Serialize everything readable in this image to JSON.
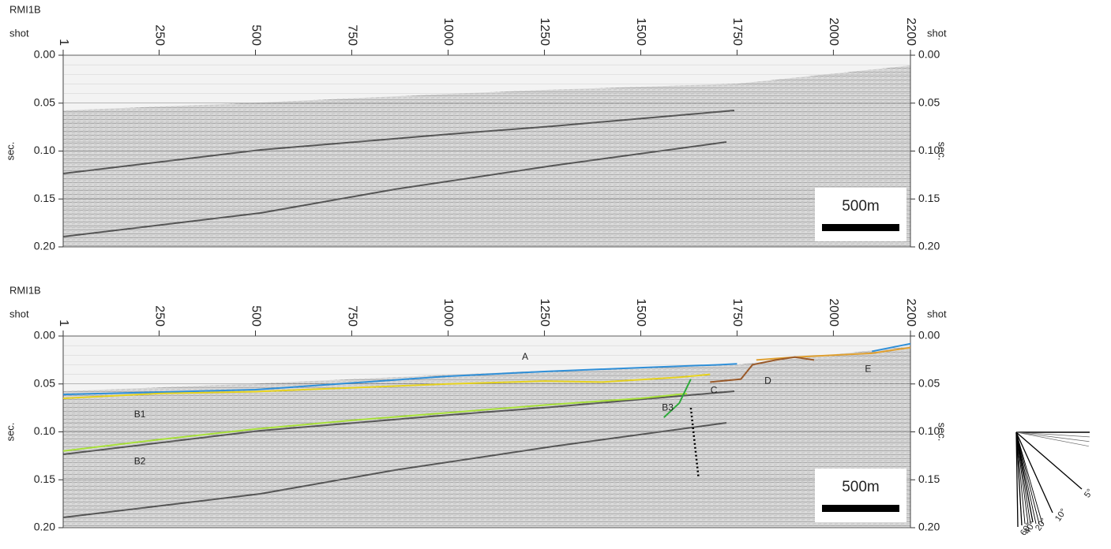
{
  "chart_data": [
    {
      "type": "seismic",
      "title": "RMI1B",
      "x_label": "shot",
      "y_label": "sec.",
      "scale_bar_label": "500m",
      "xlim": [
        1,
        2200
      ],
      "xticks": [
        1,
        250,
        500,
        750,
        1000,
        1250,
        1500,
        1750,
        2000,
        2200
      ],
      "ylim": [
        0,
        0.2
      ],
      "y_inverted": true,
      "yticks": [
        {
          "value": 0,
          "label": "0.00"
        },
        0.05,
        {
          "value": 0.1,
          "label": "0.10"
        },
        0.15,
        {
          "value": 0.2,
          "label": "0.20"
        }
      ],
      "grid": true
    },
    {
      "type": "seismic",
      "title": "RMI1B",
      "x_label": "shot",
      "y_label": "sec.",
      "scale_bar_label": "500m",
      "xlim": [
        1,
        2200
      ],
      "xticks": [
        1,
        250,
        500,
        750,
        1000,
        1250,
        1500,
        1750,
        2000,
        2200
      ],
      "ylim": [
        0,
        0.2
      ],
      "y_inverted": true,
      "yticks": [
        {
          "value": 0,
          "label": "0.00"
        },
        0.05,
        {
          "value": 0.1,
          "label": "0.10"
        },
        0.15,
        {
          "value": 0.2,
          "label": "0.20"
        }
      ],
      "grid": true,
      "series": [
        {
          "color": "#2f8fd8",
          "x": [
            1,
            500,
            1000,
            1250,
            1500,
            1700,
            1750,
            null,
            2100,
            2200
          ],
          "values": [
            0.061,
            0.056,
            0.042,
            0.037,
            0.033,
            0.03,
            0.029,
            null,
            0.016,
            0.008
          ]
        },
        {
          "color": "#e6d21e",
          "x": [
            1,
            250,
            500,
            750,
            1000,
            1250,
            1400,
            1600,
            1680
          ],
          "values": [
            0.065,
            0.06,
            0.058,
            0.054,
            0.05,
            0.047,
            0.048,
            0.043,
            0.04
          ]
        },
        {
          "color": "#e0a030",
          "x": [
            1800,
            1900,
            2000,
            2100,
            2200
          ],
          "values": [
            0.025,
            0.022,
            0.02,
            0.018,
            0.012
          ]
        },
        {
          "color": "#a8e03a",
          "x": [
            1,
            250,
            500,
            750,
            1000,
            1250,
            1500,
            1620
          ],
          "values": [
            0.12,
            0.108,
            0.097,
            0.088,
            0.08,
            0.072,
            0.065,
            0.06
          ]
        },
        {
          "color": "#2eaa3a",
          "x": [
            1560,
            1600,
            1630
          ],
          "values": [
            0.085,
            0.07,
            0.045
          ]
        },
        {
          "color": "#9a5a2a",
          "x": [
            1680,
            1760,
            1790,
            1850,
            1900,
            1950
          ],
          "values": [
            0.048,
            0.045,
            0.03,
            0.025,
            0.022,
            0.025
          ]
        },
        {
          "color": "#000000",
          "dashed": true,
          "x": [
            1630,
            1650
          ],
          "values": [
            0.075,
            0.148
          ]
        }
      ],
      "annotations": [
        {
          "text": "A",
          "x": 1200,
          "y": 0.022
        },
        {
          "text": "B1",
          "x": 200,
          "y": 0.082
        },
        {
          "text": "B2",
          "x": 200,
          "y": 0.131
        },
        {
          "text": "B3",
          "x": 1570,
          "y": 0.075
        },
        {
          "text": "C",
          "x": 1690,
          "y": 0.057
        },
        {
          "text": "D",
          "x": 1830,
          "y": 0.047
        },
        {
          "text": "E",
          "x": 2090,
          "y": 0.035
        }
      ]
    }
  ],
  "angle_scale": {
    "labels": [
      "5°",
      "10°",
      "20°",
      "40°",
      "60°"
    ]
  }
}
